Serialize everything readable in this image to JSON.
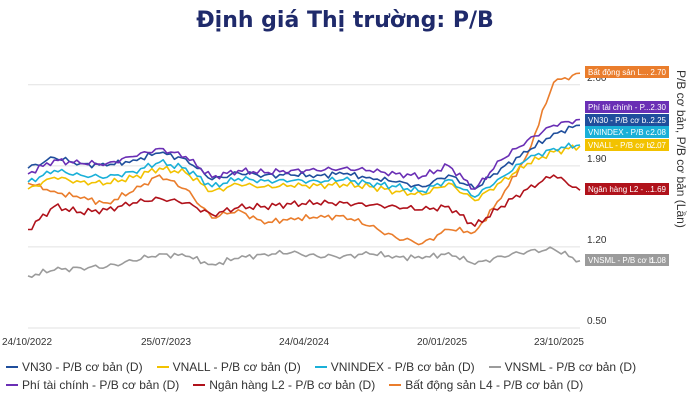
{
  "chart_data": {
    "type": "line",
    "title": "Định giá Thị trường: P/B",
    "ylabel": "P/B cơ bản, P/B cơ bản (Lần)",
    "xlabel": "",
    "ylim": [
      0.5,
      2.9
    ],
    "y_ticks": [
      "0.50",
      "1.20",
      "1.90",
      "2.60"
    ],
    "x_ticks": [
      "24/10/2022",
      "25/07/2023",
      "24/04/2024",
      "20/01/2025",
      "23/10/2025"
    ],
    "x": [
      "24/10/2022",
      "12/2022",
      "02/2023",
      "04/2023",
      "05/2023",
      "07/2023",
      "09/2023",
      "10/2023",
      "12/2023",
      "02/2024",
      "04/2024",
      "06/2024",
      "08/2024",
      "10/2024",
      "12/2024",
      "01/2025",
      "03/2025",
      "04/2025",
      "06/2025",
      "08/2025",
      "09/2025",
      "23/10/2025"
    ],
    "series": [
      {
        "name": "VN30 - P/B cơ bản (D)",
        "color": "#1f4e9c",
        "values": [
          1.88,
          1.97,
          1.92,
          1.9,
          1.95,
          2.01,
          1.96,
          1.78,
          1.84,
          1.82,
          1.82,
          1.82,
          1.83,
          1.8,
          1.76,
          1.72,
          1.82,
          1.7,
          1.88,
          2.02,
          2.18,
          2.25
        ]
      },
      {
        "name": "VNALL - P/B cơ bản (D)",
        "color": "#f2c200",
        "values": [
          1.7,
          1.8,
          1.76,
          1.75,
          1.8,
          1.88,
          1.84,
          1.68,
          1.74,
          1.72,
          1.73,
          1.73,
          1.74,
          1.72,
          1.68,
          1.65,
          1.75,
          1.6,
          1.76,
          1.92,
          2.02,
          2.07
        ]
      },
      {
        "name": "VNINDEX - P/B cơ bản (D)",
        "color": "#1ab0d8",
        "values": [
          1.76,
          1.86,
          1.82,
          1.8,
          1.85,
          1.93,
          1.88,
          1.72,
          1.79,
          1.77,
          1.77,
          1.77,
          1.78,
          1.75,
          1.72,
          1.68,
          1.78,
          1.63,
          1.8,
          1.96,
          2.05,
          2.08
        ]
      },
      {
        "name": "VNSML - P/B cơ bản (D)",
        "color": "#9b9b9b",
        "values": [
          0.95,
          1.0,
          1.02,
          1.03,
          1.08,
          1.14,
          1.12,
          1.05,
          1.1,
          1.14,
          1.15,
          1.12,
          1.12,
          1.14,
          1.12,
          1.1,
          1.15,
          1.05,
          1.12,
          1.16,
          1.18,
          1.08
        ]
      },
      {
        "name": "Phí tài chính - P/B cơ bản (D)",
        "color": "#6a2fb5",
        "values": [
          1.83,
          1.95,
          1.92,
          1.92,
          1.98,
          2.05,
          1.98,
          1.8,
          1.86,
          1.84,
          1.86,
          1.86,
          1.88,
          1.86,
          1.83,
          1.81,
          1.9,
          1.7,
          1.95,
          2.12,
          2.25,
          2.3
        ]
      },
      {
        "name": "Ngân hàng L2 - P/B cơ bản (D)",
        "color": "#b0121b",
        "values": [
          1.35,
          1.55,
          1.5,
          1.52,
          1.58,
          1.62,
          1.58,
          1.48,
          1.54,
          1.55,
          1.57,
          1.58,
          1.58,
          1.56,
          1.55,
          1.52,
          1.55,
          1.38,
          1.55,
          1.7,
          1.82,
          1.69
        ]
      },
      {
        "name": "Bất động sản L4 - P/B cơ bản (D)",
        "color": "#ea7d2c",
        "values": [
          1.75,
          1.68,
          1.62,
          1.58,
          1.68,
          1.82,
          1.7,
          1.45,
          1.52,
          1.4,
          1.45,
          1.45,
          1.47,
          1.38,
          1.28,
          1.23,
          1.35,
          1.33,
          1.62,
          2.0,
          2.62,
          2.7
        ]
      }
    ],
    "end_labels": [
      {
        "series": 6,
        "text": "Bất động sản L...",
        "value": "2.70"
      },
      {
        "series": 4,
        "text": "Phí tài chính - P...",
        "value": "2.30"
      },
      {
        "series": 0,
        "text": "VN30 - P/B cơ b...",
        "value": "2.25"
      },
      {
        "series": 2,
        "text": "VNINDEX - P/B c...",
        "value": "2.08"
      },
      {
        "series": 1,
        "text": "VNALL - P/B cơ b...",
        "value": "2.07"
      },
      {
        "series": 5,
        "text": "Ngân hàng L2 - ...",
        "value": "1.69"
      },
      {
        "series": 3,
        "text": "VNSML - P/B cơ b...",
        "value": "1.08"
      }
    ],
    "legend_position": "bottom",
    "grid": "horizontal"
  }
}
